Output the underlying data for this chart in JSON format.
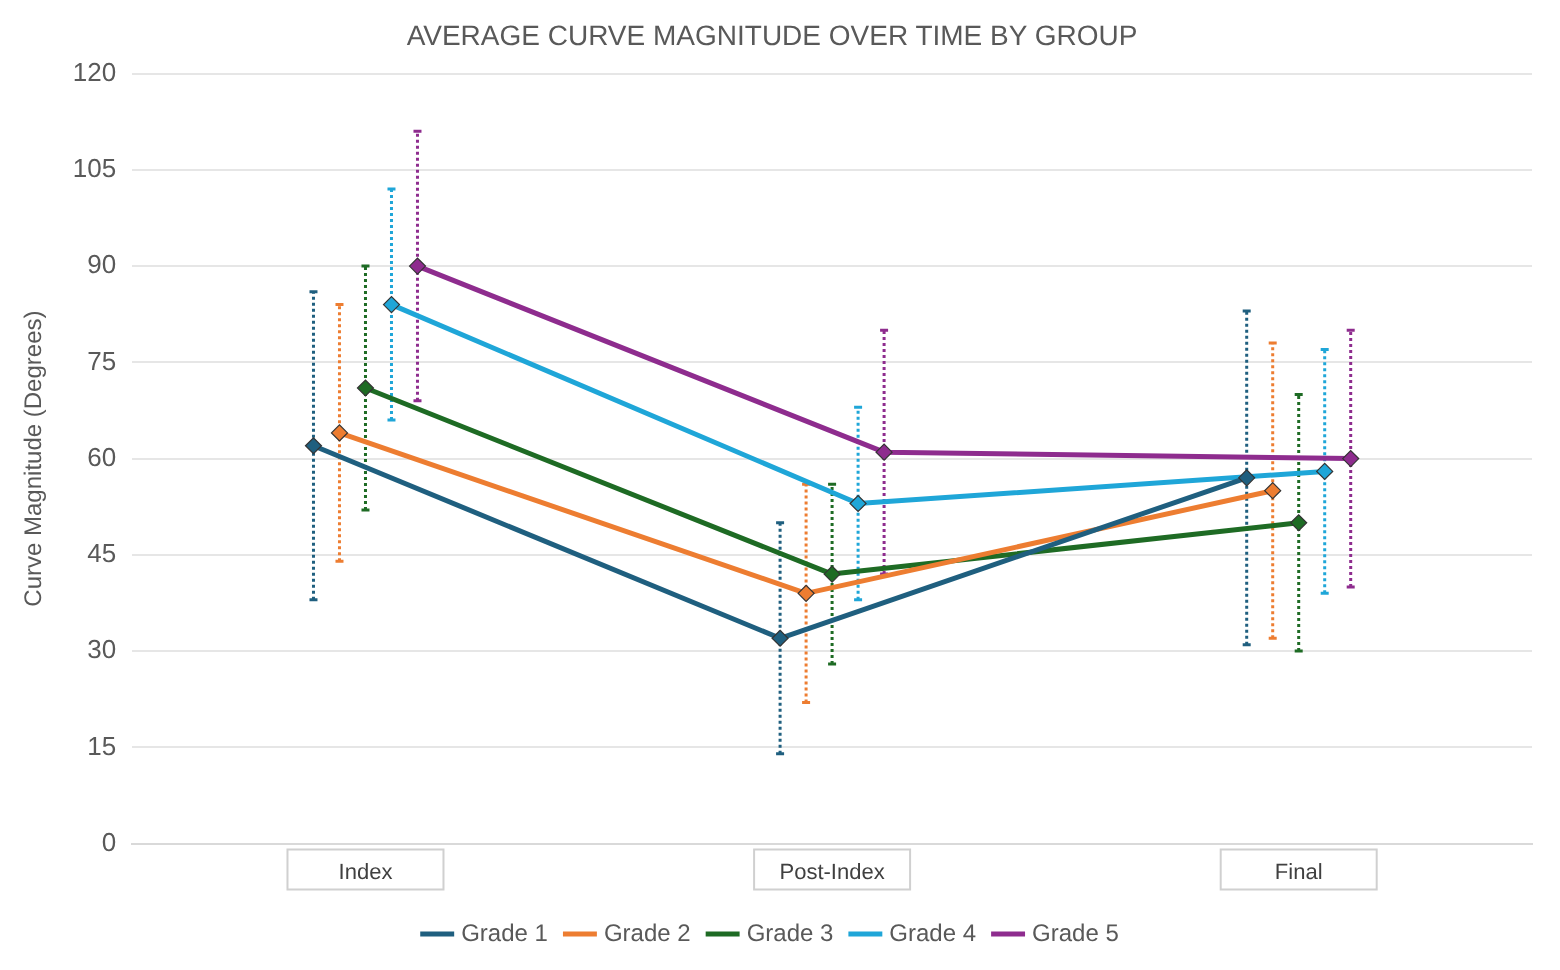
{
  "chart_data": {
    "type": "line",
    "title": "AVERAGE CURVE MAGNITUDE OVER TIME BY GROUP",
    "ylabel": "Curve Magnitude (Degrees)",
    "categories": [
      "Index",
      "Post-Index",
      "Final"
    ],
    "series": [
      {
        "name": "Grade 1",
        "color": "#1f5f7f",
        "values": [
          62,
          32,
          57
        ],
        "errors": [
          [
            38,
            86
          ],
          [
            14,
            50
          ],
          [
            31,
            83
          ]
        ]
      },
      {
        "name": "Grade 2",
        "color": "#ed7d31",
        "values": [
          64,
          39,
          55
        ],
        "errors": [
          [
            44,
            84
          ],
          [
            22,
            56
          ],
          [
            32,
            78
          ]
        ]
      },
      {
        "name": "Grade 3",
        "color": "#1e6b24",
        "values": [
          71,
          42,
          50
        ],
        "errors": [
          [
            52,
            90
          ],
          [
            28,
            56
          ],
          [
            30,
            70
          ]
        ]
      },
      {
        "name": "Grade 4",
        "color": "#1fa6d8",
        "values": [
          84,
          53,
          58
        ],
        "errors": [
          [
            66,
            102
          ],
          [
            38,
            68
          ],
          [
            39,
            77
          ]
        ]
      },
      {
        "name": "Grade 5",
        "color": "#8e2c8e",
        "values": [
          90,
          61,
          60
        ],
        "errors": [
          [
            69,
            111
          ],
          [
            42,
            80
          ],
          [
            40,
            80
          ]
        ]
      }
    ],
    "ylim": [
      0,
      120
    ],
    "yticks": [
      0,
      15,
      30,
      45,
      60,
      75,
      90,
      105,
      120
    ],
    "grid": "y",
    "legend": "bottom",
    "marker": "diamond",
    "line_style": "solid"
  }
}
